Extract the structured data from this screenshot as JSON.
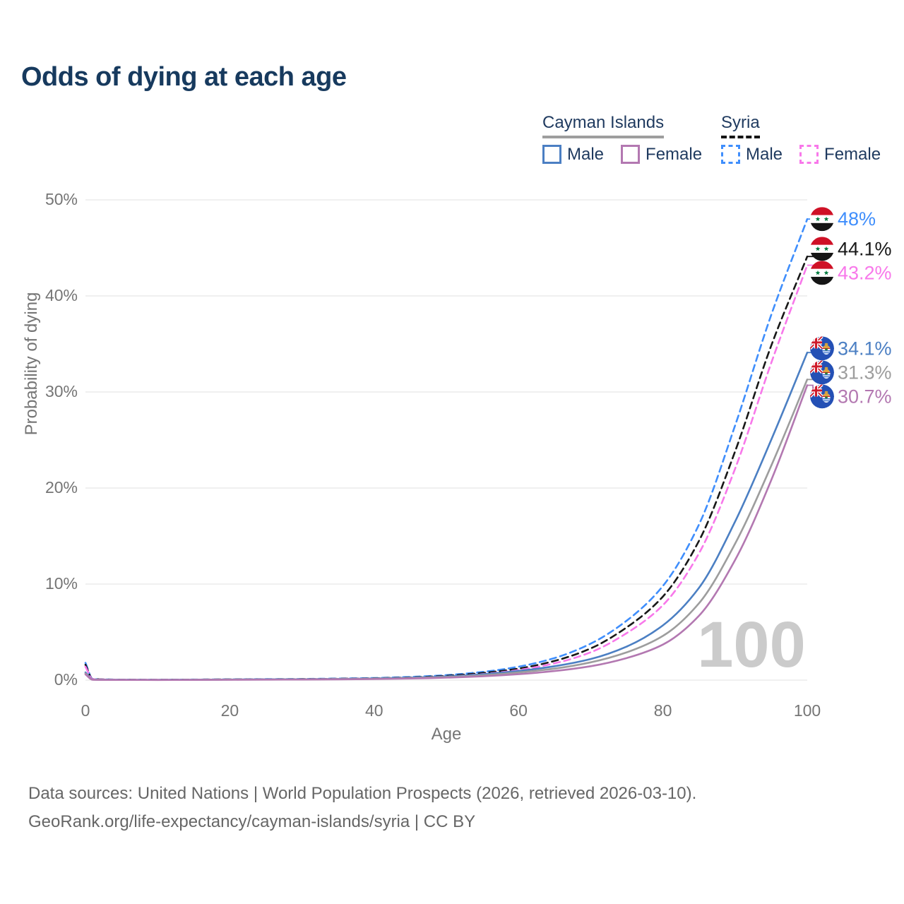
{
  "title": "Odds of dying at each age",
  "watermark": "100",
  "legend": {
    "groups": [
      {
        "country": "Cayman Islands",
        "style": "solid",
        "underline_color": "#9e9e9e",
        "items": [
          {
            "label": "Male",
            "color": "#4b7fc3"
          },
          {
            "label": "Female",
            "color": "#b378b1"
          }
        ]
      },
      {
        "country": "Syria",
        "style": "dashed",
        "underline_color": "#151515",
        "items": [
          {
            "label": "Male",
            "color": "#3f8efc"
          },
          {
            "label": "Female",
            "color": "#f878ea"
          }
        ]
      }
    ]
  },
  "footer": {
    "line1": "Data sources: United Nations | World Population Prospects (2026, retrieved 2026-03-10).",
    "line2": "GeoRank.org/life-expectancy/cayman-islands/syria | CC BY"
  },
  "chart_data": {
    "type": "line",
    "title": "Odds of dying at each age",
    "xlabel": "Age",
    "ylabel": "Probability of dying",
    "xlim": [
      0,
      100
    ],
    "ylim": [
      0,
      50
    ],
    "x_ticks": [
      0,
      20,
      40,
      60,
      80,
      100
    ],
    "y_ticks": [
      0,
      10,
      20,
      30,
      40,
      50
    ],
    "y_tick_suffix": "%",
    "grid": "horizontal",
    "legend_position": "top-right",
    "ages": [
      0,
      1,
      5,
      10,
      15,
      20,
      25,
      30,
      35,
      40,
      45,
      50,
      55,
      60,
      65,
      70,
      75,
      80,
      85,
      90,
      95,
      100
    ],
    "series": [
      {
        "name": "Syria Male",
        "country": "Syria",
        "sex": "Male",
        "color": "#3f8efc",
        "dash": true,
        "end_label": "48%",
        "flag": "syria",
        "y": [
          1.8,
          0.12,
          0.05,
          0.04,
          0.06,
          0.08,
          0.1,
          0.12,
          0.16,
          0.22,
          0.33,
          0.52,
          0.85,
          1.4,
          2.3,
          3.8,
          6.2,
          9.8,
          16.2,
          26.5,
          38.0,
          48.0
        ]
      },
      {
        "name": "Syria Both sexes",
        "country": "Syria",
        "sex": "Both",
        "color": "#181818",
        "dash": true,
        "end_label": "44.1%",
        "flag": "syria",
        "y": [
          1.6,
          0.11,
          0.045,
          0.035,
          0.05,
          0.07,
          0.09,
          0.1,
          0.14,
          0.19,
          0.28,
          0.45,
          0.74,
          1.2,
          2.0,
          3.3,
          5.5,
          8.7,
          14.5,
          23.8,
          34.8,
          44.1
        ]
      },
      {
        "name": "Syria Female",
        "country": "Syria",
        "sex": "Female",
        "color": "#f878ea",
        "dash": true,
        "end_label": "43.2%",
        "flag": "syria",
        "y": [
          1.4,
          0.1,
          0.04,
          0.03,
          0.04,
          0.05,
          0.07,
          0.09,
          0.12,
          0.16,
          0.24,
          0.38,
          0.63,
          1.05,
          1.75,
          2.9,
          4.9,
          7.8,
          13.2,
          22.0,
          33.0,
          43.2
        ]
      },
      {
        "name": "Cayman Islands Male",
        "country": "Cayman Islands",
        "sex": "Male",
        "color": "#4b7fc3",
        "dash": false,
        "end_label": "34.1%",
        "flag": "cayman",
        "y": [
          0.8,
          0.06,
          0.03,
          0.025,
          0.04,
          0.06,
          0.08,
          0.09,
          0.12,
          0.17,
          0.25,
          0.38,
          0.6,
          0.95,
          1.45,
          2.2,
          3.5,
          5.7,
          9.6,
          16.5,
          25.0,
          34.1
        ]
      },
      {
        "name": "Cayman Islands Both sexes",
        "country": "Cayman Islands",
        "sex": "Both",
        "color": "#9d9d9d",
        "dash": false,
        "end_label": "31.3%",
        "flag": "cayman",
        "y": [
          0.7,
          0.05,
          0.025,
          0.02,
          0.03,
          0.05,
          0.06,
          0.08,
          0.1,
          0.14,
          0.21,
          0.32,
          0.5,
          0.8,
          1.2,
          1.85,
          2.9,
          4.6,
          8.0,
          14.2,
          22.3,
          31.3
        ]
      },
      {
        "name": "Cayman Islands Female",
        "country": "Cayman Islands",
        "sex": "Female",
        "color": "#b378b1",
        "dash": false,
        "end_label": "30.7%",
        "flag": "cayman",
        "y": [
          0.6,
          0.045,
          0.02,
          0.018,
          0.025,
          0.04,
          0.05,
          0.06,
          0.08,
          0.11,
          0.17,
          0.26,
          0.4,
          0.62,
          0.95,
          1.45,
          2.3,
          3.7,
          6.7,
          12.5,
          20.8,
          30.7
        ]
      }
    ]
  }
}
